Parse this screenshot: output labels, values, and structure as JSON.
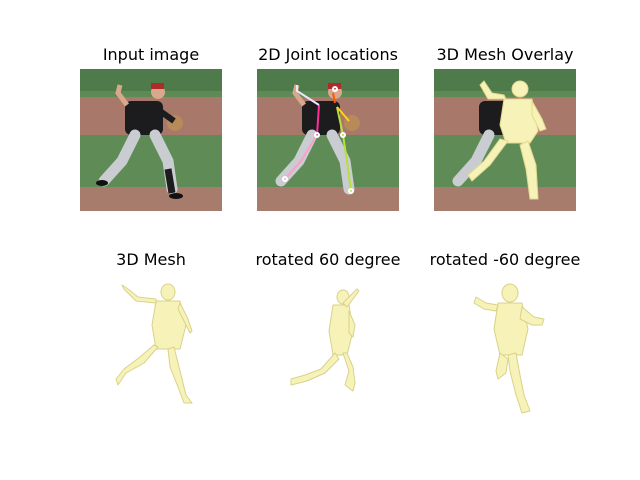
{
  "panels": [
    {
      "title": "Input image",
      "content": "photo"
    },
    {
      "title": "2D Joint locations",
      "content": "photo-with-skeleton"
    },
    {
      "title": "3D Mesh Overlay",
      "content": "photo-with-mesh"
    },
    {
      "title": "3D Mesh",
      "content": "mesh-front"
    },
    {
      "title": "rotated 60 degree",
      "content": "mesh-rotated-60"
    },
    {
      "title": "rotated -60 degree",
      "content": "mesh-rotated-neg60"
    }
  ],
  "colors": {
    "grass": "#5e8a55",
    "dirt": "#a8786a",
    "mesh": "#f7f2b8",
    "mesh_stroke": "#d9d28a",
    "jersey": "#1c1c1e",
    "pants": "#c9ccd0"
  }
}
